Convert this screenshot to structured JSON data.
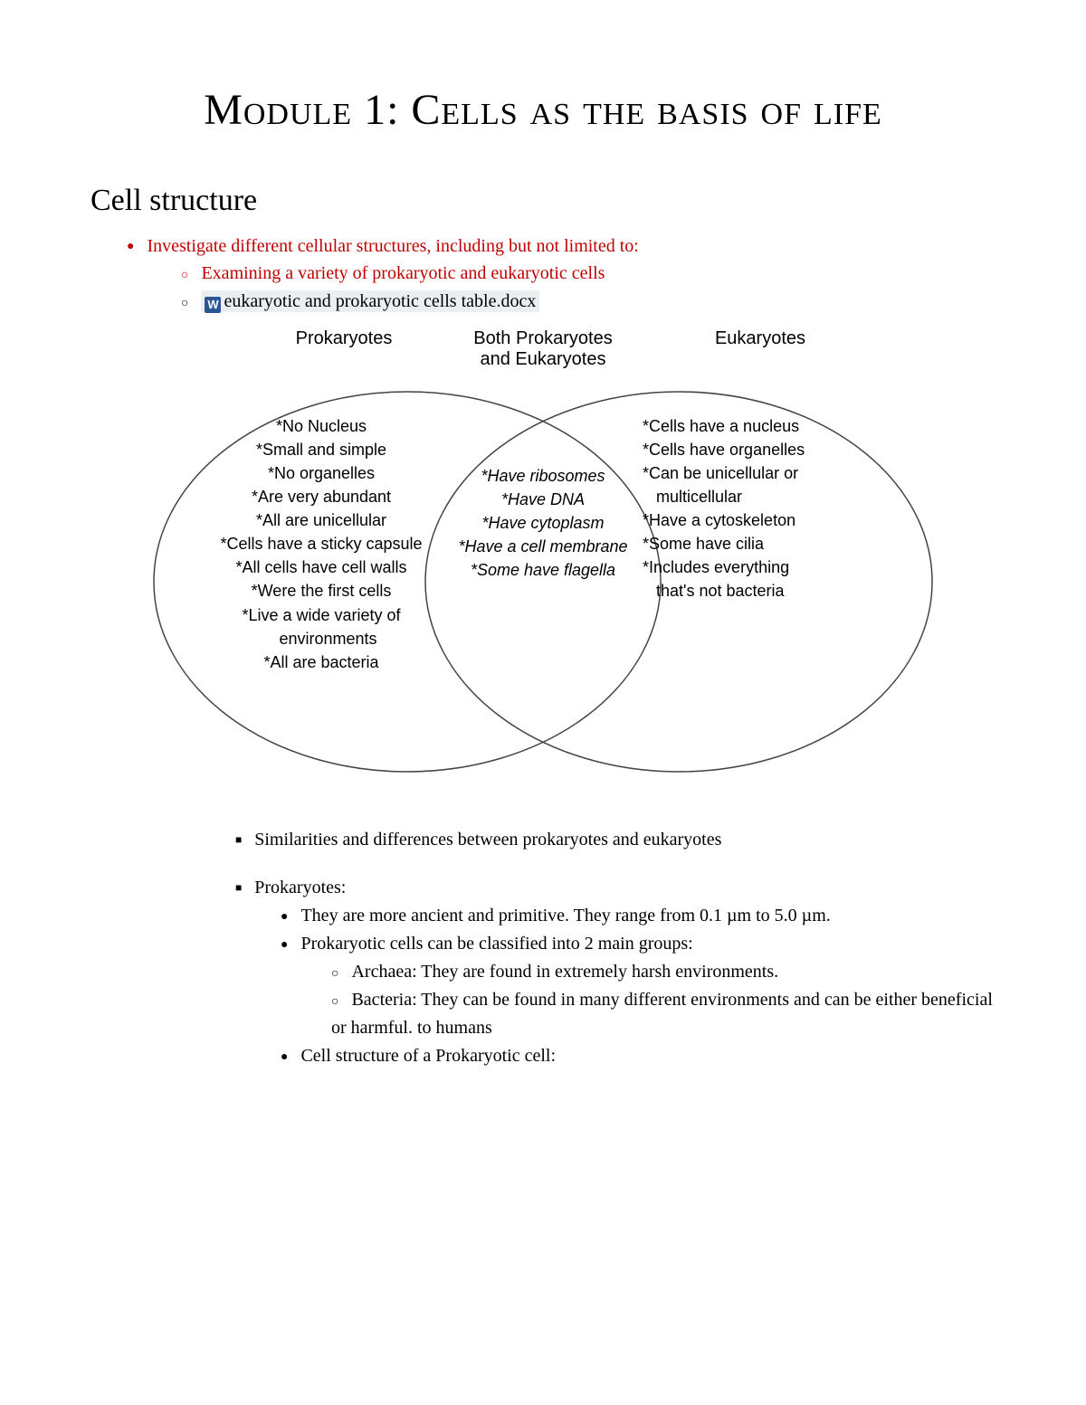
{
  "title": "Module 1: Cells as the basis of life",
  "section_heading": "Cell structure",
  "bullets": {
    "lvl1_1": "Investigate different cellular structures, including but not limited to:",
    "lvl2_1": "Examining a variety of prokaryotic and eukaryotic cells",
    "lvl2_2_file": "eukaryotic and prokaryotic cells table.docx",
    "word_badge": "W"
  },
  "venn": {
    "headers": {
      "left": "Prokaryotes",
      "center_l1": "Both Prokaryotes",
      "center_l2": "and Eukaryotes",
      "right": "Eukaryotes"
    },
    "left_items": [
      "*No Nucleus",
      "*Small and simple",
      "*No organelles",
      "*Are very abundant",
      "*All are unicellular",
      "*Cells have a sticky capsule",
      "*All cells have cell walls",
      "*Were the first cells",
      "*Live a wide variety of",
      "   environments",
      "*All are bacteria"
    ],
    "center_items": [
      "*Have ribosomes",
      "*Have DNA",
      "*Have cytoplasm",
      "*Have a cell membrane",
      "*Some have flagella"
    ],
    "right_items": [
      "*Cells have a nucleus",
      "*Cells have organelles",
      "*Can be unicellular or",
      "   multicellular",
      "*Have a cytoskeleton",
      "*Some have cilia",
      "*Includes everything",
      "   that's not bacteria"
    ],
    "circle_stroke": "#444444",
    "circle_stroke_width": 1.5
  },
  "notes": {
    "sq1": "Similarities and differences between prokaryotes and eukaryotes",
    "sq2": "Prokaryotes:",
    "pk1": "They are more ancient and primitive. They range from 0.1 µm to 5.0 µm.",
    "pk2": "Prokaryotic cells can be classified into 2 main groups:",
    "pk2a": "Archaea: They are found in extremely harsh environments.",
    "pk2b": "Bacteria: They can be found in many different environments and can be either beneficial or harmful. to humans",
    "pk3": "Cell structure of a Prokaryotic cell:"
  },
  "colors": {
    "accent_red": "#c00000",
    "word_blue": "#2b5797",
    "file_bg": "#eceff1"
  }
}
